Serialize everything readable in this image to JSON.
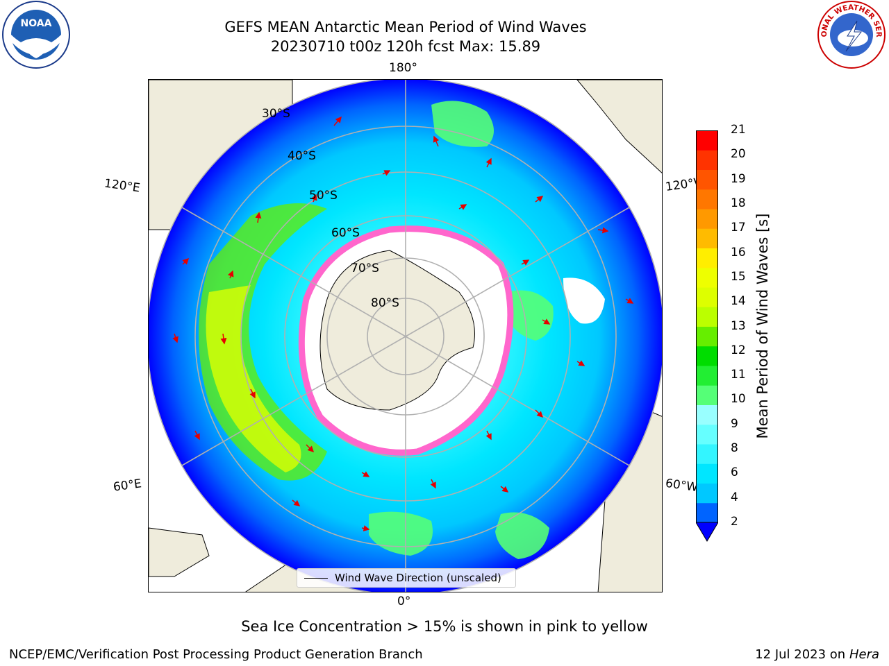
{
  "header": {
    "title_line1": "GEFS MEAN Antarctic Mean Period of Wind Waves",
    "title_line2": "20230710 t00z 120h fcst   Max: 15.89"
  },
  "map": {
    "projection": "south-polar-stereographic",
    "longitude_labels": {
      "top": "180°",
      "left": "120°E",
      "right": "120°W",
      "lower_left": "60°E",
      "lower_right": "60°W",
      "bottom": "0°"
    },
    "latitude_labels": [
      "30°S",
      "40°S",
      "50°S",
      "60°S",
      "70°S",
      "80°S"
    ],
    "legend_text": "Wind Wave Direction (unscaled)",
    "colors": {
      "land": "#efecdc",
      "arrows": "#e60000",
      "sea_ice": "#ff66cc",
      "grid": "#b0b0b0"
    }
  },
  "colorbar": {
    "label": "Mean Period of Wind Waves [s]",
    "ticks": [
      "21",
      "20",
      "19",
      "18",
      "17",
      "16",
      "15",
      "14",
      "13",
      "12",
      "11",
      "10",
      "9",
      "8",
      "6",
      "4",
      "2"
    ],
    "colors_bottom_to_top": [
      "#0064ff",
      "#00c8ff",
      "#00e6ff",
      "#33f5ff",
      "#66ffff",
      "#99ffff",
      "#55ff77",
      "#22ee33",
      "#00dd00",
      "#66ee00",
      "#bbff00",
      "#ddff00",
      "#eeff00",
      "#ffee00",
      "#ffbb00",
      "#ff9900",
      "#ff7700",
      "#ff5500",
      "#ff3300",
      "#ff0000"
    ],
    "under_color": "#0000ff"
  },
  "footer": {
    "note": "Sea Ice Concentration > 15% is shown in pink to yellow",
    "credit": "NCEP/EMC/Verification Post Processing Product Generation Branch",
    "run_date": "12 Jul 2023 on ",
    "machine": "Hera"
  },
  "logos": {
    "left": "NOAA",
    "right": "NATIONAL WEATHER SERVICE"
  }
}
